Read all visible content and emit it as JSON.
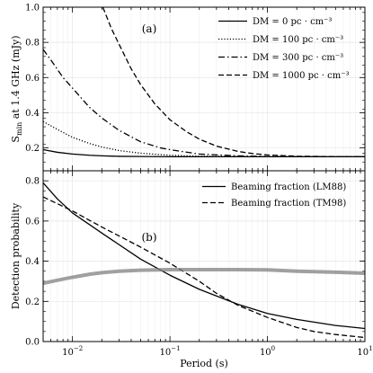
{
  "chart_data": [
    {
      "type": "line",
      "panel_tag": "(a)",
      "xlabel": "",
      "ylabel": "S_min at 1.4 GHz (mJy)",
      "ylabel_main": "S",
      "ylabel_sub": "min",
      "ylabel_rest": " at 1.4 GHz (mJy)",
      "xscale": "log",
      "xlim": [
        0.005,
        10
      ],
      "ylim": [
        0.07,
        1.0
      ],
      "yticks": [
        0.2,
        0.4,
        0.6,
        0.8,
        1.0
      ],
      "ytick_labels": [
        "0.2",
        "0.4",
        "0.6",
        "0.8",
        "1.0"
      ],
      "grid": true,
      "legend_position": "top-right",
      "series": [
        {
          "name": "DM = 0 pc · cm⁻³",
          "dash": "solid",
          "color": "#000000",
          "x": [
            0.005,
            0.007,
            0.01,
            0.015,
            0.02,
            0.03,
            0.05,
            0.1,
            0.2,
            0.5,
            1,
            2,
            5,
            10
          ],
          "y": [
            0.19,
            0.175,
            0.165,
            0.158,
            0.155,
            0.152,
            0.151,
            0.15,
            0.15,
            0.15,
            0.15,
            0.15,
            0.15,
            0.15
          ]
        },
        {
          "name": "DM = 100 pc · cm⁻³",
          "dash": "dotted",
          "color": "#000000",
          "x": [
            0.005,
            0.007,
            0.01,
            0.015,
            0.02,
            0.03,
            0.05,
            0.1,
            0.2,
            0.5,
            1,
            2,
            5,
            10
          ],
          "y": [
            0.35,
            0.305,
            0.26,
            0.225,
            0.205,
            0.185,
            0.17,
            0.158,
            0.153,
            0.151,
            0.15,
            0.15,
            0.15,
            0.15
          ]
        },
        {
          "name": "DM = 300 pc · cm⁻³",
          "dash": "dashdot",
          "color": "#000000",
          "x": [
            0.005,
            0.006,
            0.008,
            0.01,
            0.015,
            0.02,
            0.03,
            0.05,
            0.08,
            0.1,
            0.2,
            0.5,
            1,
            2,
            5,
            10
          ],
          "y": [
            0.76,
            0.7,
            0.6,
            0.54,
            0.43,
            0.37,
            0.3,
            0.235,
            0.2,
            0.19,
            0.165,
            0.155,
            0.151,
            0.15,
            0.15,
            0.15
          ]
        },
        {
          "name": "DM = 1000 pc · cm⁻³",
          "dash": "dashed",
          "color": "#000000",
          "x": [
            0.0205,
            0.025,
            0.03,
            0.04,
            0.05,
            0.07,
            0.1,
            0.15,
            0.2,
            0.3,
            0.5,
            0.7,
            1,
            2,
            5,
            10
          ],
          "y": [
            1.0,
            0.88,
            0.79,
            0.65,
            0.56,
            0.45,
            0.36,
            0.29,
            0.25,
            0.21,
            0.18,
            0.168,
            0.16,
            0.153,
            0.15,
            0.15
          ]
        }
      ]
    },
    {
      "type": "line",
      "panel_tag": "(b)",
      "xlabel": "Period (s)",
      "ylabel": "Detection probability",
      "xscale": "log",
      "xlim": [
        0.005,
        10
      ],
      "ylim": [
        0.0,
        0.85
      ],
      "xticks": [
        0.01,
        0.1,
        1,
        10
      ],
      "xtick_labels": [
        {
          "base": "10",
          "exp": "−2"
        },
        {
          "base": "10",
          "exp": "−1"
        },
        {
          "base": "10",
          "exp": "0"
        },
        {
          "base": "10",
          "exp": "1"
        }
      ],
      "yticks": [
        0.0,
        0.2,
        0.4,
        0.6,
        0.8
      ],
      "ytick_labels": [
        "0.0",
        "0.2",
        "0.4",
        "0.6",
        "0.8"
      ],
      "grid": true,
      "legend_position": "top-right",
      "series": [
        {
          "name": "Beaming fraction (LM88)",
          "dash": "solid",
          "color": "#000000",
          "x": [
            0.005,
            0.007,
            0.01,
            0.02,
            0.05,
            0.1,
            0.2,
            0.5,
            1,
            2,
            5,
            10
          ],
          "y": [
            0.79,
            0.71,
            0.64,
            0.54,
            0.41,
            0.33,
            0.26,
            0.185,
            0.14,
            0.11,
            0.08,
            0.065
          ]
        },
        {
          "name": "Beaming fraction (TM98)",
          "dash": "dashed",
          "color": "#000000",
          "x": [
            0.005,
            0.01,
            0.02,
            0.05,
            0.1,
            0.2,
            0.3,
            0.5,
            1,
            2,
            3,
            5,
            10
          ],
          "y": [
            0.72,
            0.65,
            0.57,
            0.47,
            0.39,
            0.3,
            0.24,
            0.18,
            0.12,
            0.07,
            0.05,
            0.035,
            0.02
          ]
        },
        {
          "name": "",
          "dash": "solid",
          "color": "#808080",
          "thick": true,
          "x": [
            0.005,
            0.007,
            0.01,
            0.015,
            0.02,
            0.03,
            0.05,
            0.1,
            0.2,
            0.5,
            1,
            2,
            5,
            10
          ],
          "y": [
            0.29,
            0.305,
            0.32,
            0.335,
            0.343,
            0.35,
            0.355,
            0.358,
            0.358,
            0.358,
            0.357,
            0.35,
            0.345,
            0.34
          ]
        }
      ]
    }
  ]
}
